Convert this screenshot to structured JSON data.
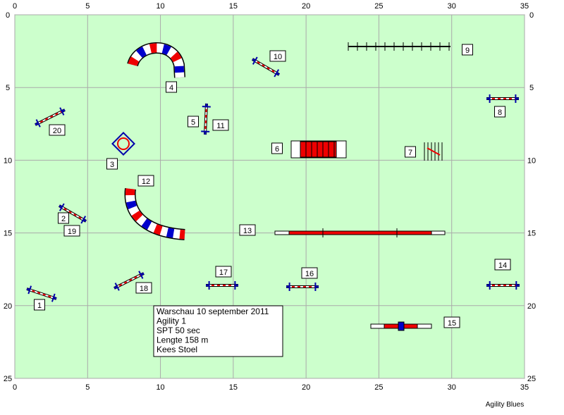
{
  "axes": {
    "x_ticks": [
      0,
      5,
      10,
      15,
      20,
      25,
      30,
      35
    ],
    "y_ticks": [
      0,
      5,
      10,
      15,
      20,
      25
    ]
  },
  "obstacles": [
    {
      "label": "1"
    },
    {
      "label": "2"
    },
    {
      "label": "3"
    },
    {
      "label": "4"
    },
    {
      "label": "5"
    },
    {
      "label": "6"
    },
    {
      "label": "7"
    },
    {
      "label": "8"
    },
    {
      "label": "9"
    },
    {
      "label": "10"
    },
    {
      "label": "11"
    },
    {
      "label": "12"
    },
    {
      "label": "13"
    },
    {
      "label": "14"
    },
    {
      "label": "15"
    },
    {
      "label": "16"
    },
    {
      "label": "17"
    },
    {
      "label": "18"
    },
    {
      "label": "19"
    },
    {
      "label": "20"
    }
  ],
  "info_box": {
    "lines": [
      "Warschau 10 september 2011",
      "Agility 1",
      "SPT 50 sec",
      "Lengte 158 m",
      "Kees Stoel"
    ]
  },
  "footer": "Agility Blues"
}
